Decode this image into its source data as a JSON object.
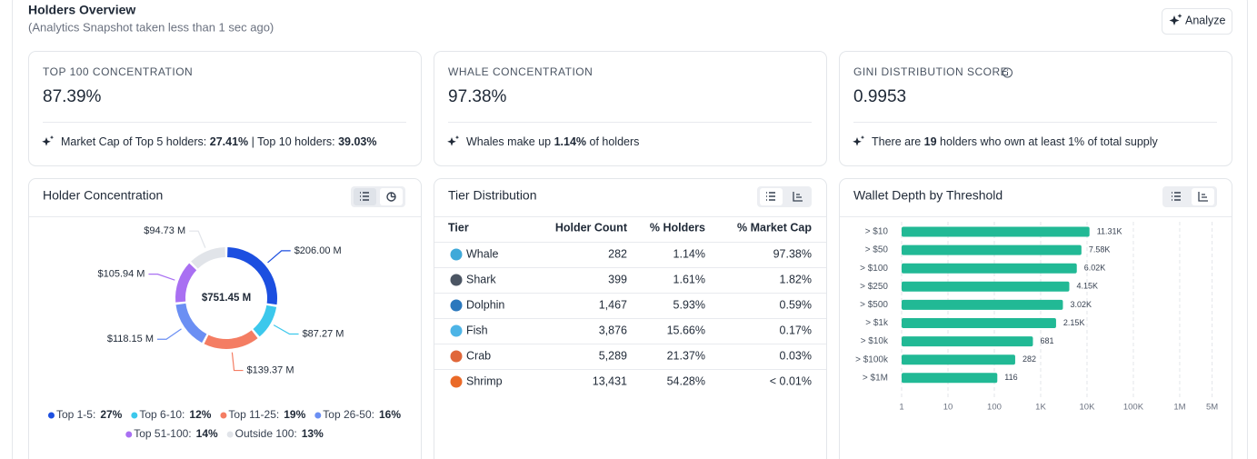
{
  "header": {
    "title": "Holders Overview",
    "subtitle": "(Analytics Snapshot taken less than 1 sec ago)",
    "button": "Analyze"
  },
  "cards": [
    {
      "label": "TOP 100 CONCENTRATION",
      "value": "87.39%",
      "note": [
        "Market Cap of Top 5 holders: ",
        "27.41%",
        " | Top 10 holders: ",
        "39.03%"
      ]
    },
    {
      "label": "WHALE CONCENTRATION",
      "value": "97.38%",
      "note": [
        "Whales make up ",
        "1.14%",
        " of holders"
      ]
    },
    {
      "label": "GINI DISTRIBUTION SCORE",
      "value": "0.9953",
      "note": [
        "There are ",
        "19",
        " holders who own at least 1% of total supply"
      ]
    }
  ],
  "table": {
    "title": "Tier Distribution",
    "columns": [
      "Tier",
      "Holder Count",
      "% Holders",
      "% Market Cap"
    ],
    "rows": [
      [
        "Whale",
        "282",
        "1.14%",
        "97.38%"
      ],
      [
        "Shark",
        "399",
        "1.61%",
        "1.82%"
      ],
      [
        "Dolphin",
        "1,467",
        "5.93%",
        "0.59%"
      ],
      [
        "Fish",
        "3,876",
        "15.66%",
        "0.17%"
      ],
      [
        "Crab",
        "5,289",
        "21.37%",
        "0.03%"
      ],
      [
        "Shrimp",
        "13,431",
        "54.28%",
        "< 0.01%"
      ]
    ]
  },
  "chart_data": [
    {
      "type": "donut",
      "title": "Holder Concentration",
      "categories": [
        "Top 1-5:",
        "Top 6-10:",
        "Top 11-25:",
        "Top 26-50:",
        "Top 51-100:",
        "Outside 100:"
      ],
      "values": [
        206.0,
        87.27,
        139.37,
        118.15,
        105.94,
        94.73
      ],
      "value_labels": [
        "$206.00 M",
        "$87.27 M",
        "$139.37 M",
        "$118.15 M",
        "$105.94 M",
        "$94.73 M"
      ],
      "colors": [
        "#1c4fe0",
        "#3cc8ec",
        "#f47d63",
        "#6b8ff3",
        "#a970f2",
        "#e1e4e9"
      ],
      "percents": [
        27,
        12,
        19,
        16,
        14,
        13
      ],
      "percent_labels": [
        "27%",
        "12%",
        "19%",
        "16%",
        "14%",
        "13%"
      ],
      "total": 751.45,
      "total_label": "$751.45 M"
    },
    {
      "type": "bar",
      "orientation": "horizontal",
      "title": "Wallet Depth by Threshold",
      "categories": [
        "> $10",
        "> $50",
        "> $100",
        "> $250",
        "> $500",
        "> $1k",
        "> $10k",
        "> $100k",
        "> $1M"
      ],
      "values": [
        11310,
        7580,
        6020,
        4150,
        3020,
        2150,
        681,
        282,
        116
      ],
      "value_labels": [
        "11.31K",
        "7.58K",
        "6.02K",
        "4.15K",
        "3.02K",
        "2.15K",
        "681",
        "282",
        "116"
      ],
      "color": "#21b995",
      "xscale": "log",
      "xlim": [
        1,
        5000000
      ],
      "xticks": [
        1,
        10,
        100,
        {
          "value": 1000,
          "label": "1K"
        },
        {
          "value": 10000,
          "label": "10K"
        },
        {
          "value": 100000,
          "label": "100K"
        },
        {
          "value": 1000000,
          "label": "1M"
        },
        {
          "value": 5000000,
          "label": "5M"
        }
      ],
      "grid": true
    }
  ]
}
